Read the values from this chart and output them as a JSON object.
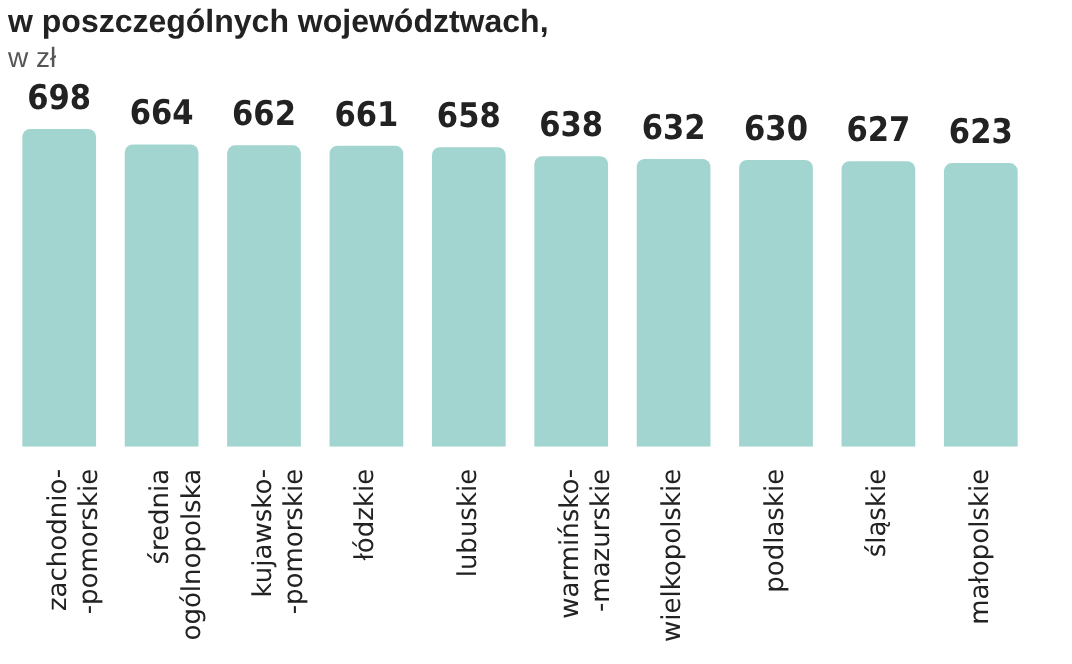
{
  "chart_data": {
    "type": "bar",
    "title": "w poszczególnych województwach,",
    "subtitle": "w zł",
    "categories": [
      "zachodnio-\n-pomorskie",
      "średnia\nogólnopolska",
      "kujawsko-\n-pomorskie",
      "łódzkie",
      "lubuskie",
      "warmińsko-\n-mazurskie",
      "wielkopolskie",
      "podlaskie",
      "śląskie",
      "małopolskie"
    ],
    "values": [
      698,
      664,
      662,
      661,
      658,
      638,
      632,
      630,
      627,
      623
    ],
    "color": "#a2d5cf",
    "data_labels": true,
    "grid": false,
    "legend": false
  }
}
